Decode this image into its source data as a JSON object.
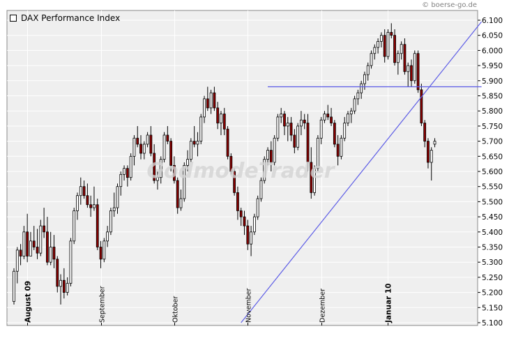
{
  "source_label": "© boerse-go.de",
  "watermark": "GodmodeTrader",
  "chart_data": {
    "type": "candlestick",
    "title": "DAX Performance Index",
    "ylim": [
      5100,
      6100
    ],
    "y_ticks": [
      "6.100",
      "6.050",
      "6.000",
      "5.950",
      "5.900",
      "5.850",
      "5.800",
      "5.750",
      "5.700",
      "5.650",
      "5.600",
      "5.550",
      "5.500",
      "5.450",
      "5.400",
      "5.350",
      "5.300",
      "5.250",
      "5.200",
      "5.150",
      "5.100"
    ],
    "x_labels": [
      {
        "label": "August 09",
        "bold": true,
        "index": 4
      },
      {
        "label": "September",
        "bold": false,
        "index": 26
      },
      {
        "label": "Oktober",
        "bold": false,
        "index": 48
      },
      {
        "label": "November",
        "bold": false,
        "index": 70
      },
      {
        "label": "Dezember",
        "bold": false,
        "index": 92
      },
      {
        "label": "Januar 10",
        "bold": true,
        "index": 112
      }
    ],
    "candles": [
      [
        5170,
        5280,
        5160,
        5270
      ],
      [
        5270,
        5350,
        5230,
        5340
      ],
      [
        5340,
        5360,
        5290,
        5320
      ],
      [
        5320,
        5420,
        5310,
        5400
      ],
      [
        5400,
        5460,
        5300,
        5320
      ],
      [
        5320,
        5400,
        5320,
        5370
      ],
      [
        5370,
        5420,
        5340,
        5350
      ],
      [
        5350,
        5410,
        5310,
        5330
      ],
      [
        5330,
        5440,
        5320,
        5420
      ],
      [
        5420,
        5480,
        5380,
        5400
      ],
      [
        5400,
        5450,
        5290,
        5300
      ],
      [
        5300,
        5400,
        5290,
        5350
      ],
      [
        5350,
        5390,
        5280,
        5310
      ],
      [
        5310,
        5320,
        5200,
        5220
      ],
      [
        5220,
        5260,
        5160,
        5240
      ],
      [
        5240,
        5280,
        5180,
        5200
      ],
      [
        5200,
        5250,
        5190,
        5230
      ],
      [
        5230,
        5380,
        5220,
        5370
      ],
      [
        5370,
        5480,
        5360,
        5470
      ],
      [
        5470,
        5530,
        5440,
        5520
      ],
      [
        5520,
        5580,
        5490,
        5550
      ],
      [
        5550,
        5570,
        5510,
        5520
      ],
      [
        5520,
        5560,
        5480,
        5490
      ],
      [
        5490,
        5520,
        5450,
        5480
      ],
      [
        5480,
        5550,
        5470,
        5490
      ],
      [
        5490,
        5510,
        5340,
        5350
      ],
      [
        5350,
        5370,
        5280,
        5310
      ],
      [
        5310,
        5380,
        5300,
        5370
      ],
      [
        5370,
        5420,
        5350,
        5400
      ],
      [
        5400,
        5480,
        5390,
        5470
      ],
      [
        5470,
        5530,
        5450,
        5480
      ],
      [
        5480,
        5560,
        5460,
        5550
      ],
      [
        5550,
        5600,
        5520,
        5590
      ],
      [
        5590,
        5620,
        5570,
        5610
      ],
      [
        5610,
        5620,
        5550,
        5580
      ],
      [
        5580,
        5660,
        5570,
        5650
      ],
      [
        5650,
        5720,
        5620,
        5710
      ],
      [
        5710,
        5750,
        5680,
        5690
      ],
      [
        5690,
        5720,
        5640,
        5660
      ],
      [
        5660,
        5700,
        5640,
        5690
      ],
      [
        5690,
        5730,
        5680,
        5720
      ],
      [
        5720,
        5750,
        5650,
        5660
      ],
      [
        5660,
        5690,
        5560,
        5570
      ],
      [
        5570,
        5600,
        5540,
        5580
      ],
      [
        5580,
        5650,
        5560,
        5640
      ],
      [
        5640,
        5730,
        5630,
        5720
      ],
      [
        5720,
        5750,
        5690,
        5700
      ],
      [
        5700,
        5710,
        5600,
        5620
      ],
      [
        5620,
        5650,
        5560,
        5570
      ],
      [
        5570,
        5580,
        5460,
        5480
      ],
      [
        5480,
        5540,
        5470,
        5510
      ],
      [
        5510,
        5630,
        5500,
        5620
      ],
      [
        5620,
        5670,
        5600,
        5640
      ],
      [
        5640,
        5710,
        5630,
        5700
      ],
      [
        5700,
        5750,
        5680,
        5690
      ],
      [
        5690,
        5730,
        5650,
        5700
      ],
      [
        5700,
        5790,
        5690,
        5780
      ],
      [
        5780,
        5850,
        5760,
        5840
      ],
      [
        5840,
        5880,
        5800,
        5810
      ],
      [
        5810,
        5870,
        5790,
        5860
      ],
      [
        5860,
        5880,
        5800,
        5810
      ],
      [
        5810,
        5830,
        5740,
        5760
      ],
      [
        5760,
        5800,
        5720,
        5790
      ],
      [
        5790,
        5810,
        5720,
        5740
      ],
      [
        5740,
        5750,
        5640,
        5650
      ],
      [
        5650,
        5660,
        5590,
        5600
      ],
      [
        5600,
        5610,
        5520,
        5530
      ],
      [
        5530,
        5550,
        5440,
        5470
      ],
      [
        5470,
        5480,
        5420,
        5450
      ],
      [
        5450,
        5470,
        5390,
        5420
      ],
      [
        5420,
        5440,
        5340,
        5360
      ],
      [
        5360,
        5420,
        5320,
        5400
      ],
      [
        5400,
        5460,
        5390,
        5450
      ],
      [
        5450,
        5520,
        5440,
        5510
      ],
      [
        5510,
        5580,
        5500,
        5570
      ],
      [
        5570,
        5650,
        5560,
        5640
      ],
      [
        5640,
        5680,
        5620,
        5670
      ],
      [
        5670,
        5700,
        5600,
        5630
      ],
      [
        5630,
        5720,
        5620,
        5710
      ],
      [
        5710,
        5790,
        5700,
        5780
      ],
      [
        5780,
        5810,
        5760,
        5790
      ],
      [
        5790,
        5800,
        5720,
        5750
      ],
      [
        5750,
        5780,
        5700,
        5760
      ],
      [
        5760,
        5780,
        5700,
        5720
      ],
      [
        5720,
        5740,
        5660,
        5680
      ],
      [
        5680,
        5760,
        5670,
        5750
      ],
      [
        5750,
        5800,
        5720,
        5770
      ],
      [
        5770,
        5790,
        5740,
        5760
      ],
      [
        5760,
        5790,
        5600,
        5630
      ],
      [
        5630,
        5680,
        5510,
        5530
      ],
      [
        5530,
        5620,
        5520,
        5610
      ],
      [
        5610,
        5720,
        5600,
        5710
      ],
      [
        5710,
        5780,
        5690,
        5770
      ],
      [
        5770,
        5800,
        5760,
        5790
      ],
      [
        5790,
        5820,
        5770,
        5780
      ],
      [
        5780,
        5810,
        5750,
        5760
      ],
      [
        5760,
        5770,
        5680,
        5690
      ],
      [
        5690,
        5720,
        5620,
        5650
      ],
      [
        5650,
        5720,
        5640,
        5710
      ],
      [
        5710,
        5780,
        5700,
        5760
      ],
      [
        5760,
        5800,
        5750,
        5790
      ],
      [
        5790,
        5810,
        5760,
        5800
      ],
      [
        5800,
        5850,
        5790,
        5840
      ],
      [
        5840,
        5870,
        5820,
        5860
      ],
      [
        5860,
        5900,
        5840,
        5890
      ],
      [
        5890,
        5930,
        5870,
        5920
      ],
      [
        5920,
        5960,
        5900,
        5950
      ],
      [
        5950,
        6000,
        5940,
        5990
      ],
      [
        5990,
        6020,
        5970,
        6010
      ],
      [
        6010,
        6040,
        5990,
        6030
      ],
      [
        6030,
        6060,
        6010,
        6050
      ],
      [
        6050,
        6070,
        5960,
        5980
      ],
      [
        5980,
        6070,
        5970,
        6060
      ],
      [
        6060,
        6090,
        6040,
        6050
      ],
      [
        6050,
        6070,
        5950,
        5960
      ],
      [
        5960,
        6000,
        5920,
        5990
      ],
      [
        5990,
        6030,
        5970,
        6020
      ],
      [
        6020,
        6040,
        5920,
        5930
      ],
      [
        5930,
        5960,
        5880,
        5950
      ],
      [
        5950,
        5970,
        5880,
        5900
      ],
      [
        5900,
        6000,
        5890,
        5990
      ],
      [
        5990,
        6000,
        5860,
        5870
      ],
      [
        5870,
        5890,
        5750,
        5760
      ],
      [
        5760,
        5770,
        5680,
        5700
      ],
      [
        5700,
        5710,
        5610,
        5630
      ],
      [
        5630,
        5680,
        5570,
        5670
      ],
      [
        5690,
        5710,
        5680,
        5700
      ]
    ],
    "lines": [
      {
        "name": "support-trendline",
        "from": [
          68,
          5100
        ],
        "to": [
          140,
          6095
        ],
        "color": "#5b5be6"
      },
      {
        "name": "resistance-line",
        "from": [
          76,
          5880
        ],
        "to": [
          140,
          5880
        ],
        "color": "#5b5be6"
      }
    ],
    "colors": {
      "bull": "#ffffff",
      "bear": "#8b0000",
      "wick": "#000000",
      "plot_background": "#efefef",
      "grid": "#ffffff",
      "line": "#5b5be6"
    }
  }
}
